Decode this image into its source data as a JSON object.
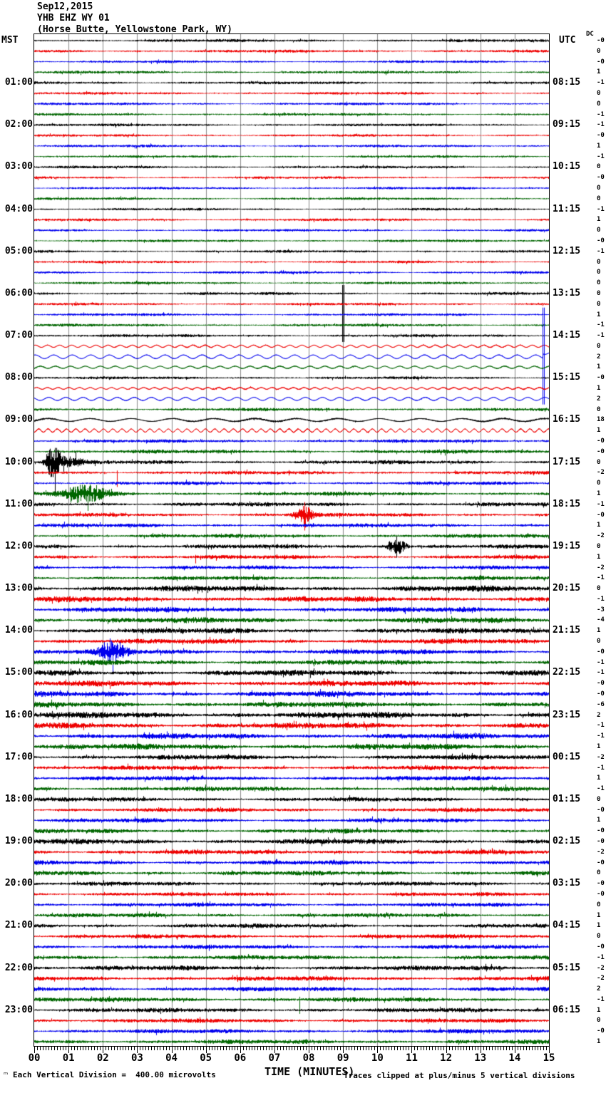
{
  "header": {
    "date": "Sep12,2015",
    "station": "YHB EHZ WY 01",
    "location": "(Horse Butte, Yellowstone Park, WY)"
  },
  "axes": {
    "left_timezone": "MST",
    "right_timezone": "UTC",
    "dc_label": "DC",
    "x_title": "TIME (MINUTES)"
  },
  "footer": {
    "scale_note": "Each Vertical Division =  400.00 microvolts",
    "clip_note": "Traces clipped at plus/minus 5 vertical divisions",
    "corner_glyph": "ₘ"
  },
  "chart_data": {
    "type": "line",
    "subtype": "helicorder-seismogram",
    "minutes_per_line": 15,
    "lines_per_hour": 4,
    "num_rows": 96,
    "row_color_cycle": [
      "#000000",
      "#ee0000",
      "#0000ee",
      "#006600"
    ],
    "grid_color": "#8a8a8a",
    "x_axis": {
      "min": 0,
      "max": 15,
      "major_tick_every": 1,
      "minor_ticks_per_major": 12,
      "tick_labels": [
        "00",
        "01",
        "02",
        "03",
        "04",
        "05",
        "06",
        "07",
        "08",
        "09",
        "10",
        "11",
        "12",
        "13",
        "14",
        "15"
      ]
    },
    "left_labels": [
      "01:00",
      "02:00",
      "03:00",
      "04:00",
      "05:00",
      "06:00",
      "07:00",
      "08:00",
      "09:00",
      "10:00",
      "11:00",
      "12:00",
      "13:00",
      "14:00",
      "15:00",
      "16:00",
      "17:00",
      "18:00",
      "19:00",
      "20:00",
      "21:00",
      "22:00",
      "23:00"
    ],
    "right_labels": [
      "08:15",
      "09:15",
      "10:15",
      "11:15",
      "12:15",
      "13:15",
      "14:15",
      "15:15",
      "16:15",
      "17:15",
      "18:15",
      "19:15",
      "20:15",
      "21:15",
      "22:15",
      "23:15",
      "00:15",
      "01:15",
      "02:15",
      "03:15",
      "04:15",
      "05:15",
      "06:15"
    ],
    "first_label_row": 5,
    "label_row_interval": 4,
    "dc_values": [
      "-0",
      "0",
      "-0",
      "1",
      "-1",
      "0",
      "0",
      "-1",
      "-1",
      "-0",
      "1",
      "-1",
      "0",
      "-0",
      "0",
      "0",
      "-1",
      "1",
      "0",
      "-0",
      "-1",
      "0",
      "0",
      "0",
      "0",
      "0",
      "1",
      "-1",
      "-1",
      "0",
      "2",
      "1",
      "-0",
      "1",
      "2",
      "0",
      "18",
      "1",
      "-0",
      "-0",
      "0",
      "-2",
      "0",
      "1",
      "-1",
      "-0",
      "1",
      "-2",
      "0",
      "1",
      "-2",
      "-1",
      "0",
      "-1",
      "-3",
      "-4",
      "1",
      "0",
      "-0",
      "-1",
      "-1",
      "-0",
      "-0",
      "-6",
      "2",
      "-1",
      "-1",
      "1",
      "-2",
      "-1",
      "1",
      "-1",
      "0",
      "-0",
      "1",
      "-0",
      "-0",
      "-2",
      "-0",
      "0",
      "-0",
      "-0",
      "0",
      "1",
      "1",
      "0",
      "-0",
      "-1",
      "-2",
      "-2",
      "2",
      "-1",
      "1",
      "0",
      "-0",
      "1"
    ],
    "row_amplitudes": [
      1.7,
      1.6,
      1.5,
      1.6,
      1.6,
      1.5,
      1.5,
      1.5,
      1.5,
      1.4,
      1.5,
      1.4,
      1.5,
      1.4,
      1.4,
      1.5,
      1.4,
      1.5,
      1.4,
      1.5,
      1.5,
      1.4,
      1.5,
      1.5,
      1.6,
      1.5,
      1.5,
      1.6,
      1.6,
      0.7,
      0.5,
      0.8,
      1.6,
      0.8,
      0.5,
      1.8,
      1.2,
      0.8,
      1.9,
      2.2,
      2.2,
      2.0,
      2.0,
      2.2,
      2.3,
      2.1,
      2.2,
      2.2,
      2.4,
      2.3,
      2.3,
      2.3,
      3.3,
      3.1,
      3.0,
      3.2,
      3.0,
      2.9,
      2.9,
      2.9,
      3.3,
      3.2,
      3.2,
      3.1,
      3.5,
      3.3,
      3.2,
      3.3,
      2.7,
      2.6,
      2.6,
      2.6,
      2.4,
      2.4,
      2.4,
      2.4,
      3.0,
      2.6,
      2.5,
      2.6,
      2.3,
      2.2,
      2.3,
      2.3,
      2.4,
      2.4,
      2.4,
      2.5,
      2.7,
      2.6,
      2.6,
      2.6,
      2.5,
      2.4,
      2.4,
      2.5
    ],
    "sine_rows": {
      "30": {
        "amp": 1.6,
        "period": 17,
        "noise": 0.7
      },
      "31": {
        "amp": 2.6,
        "period": 26,
        "noise": 0.5
      },
      "32": {
        "amp": 1.6,
        "period": 21,
        "noise": 0.8
      },
      "34": {
        "amp": 1.3,
        "period": 15,
        "noise": 0.8
      },
      "35": {
        "amp": 2.2,
        "period": 24,
        "noise": 0.5
      },
      "37": {
        "amp": 2.0,
        "period": 58,
        "noise": 1.2
      },
      "38": {
        "amp": 2.3,
        "period": 13,
        "noise": 0.8
      }
    },
    "events": [
      {
        "row": 25,
        "type": "clip_spike",
        "minute": 8.97,
        "up": 12,
        "down": 68
      },
      {
        "row": 31,
        "type": "clip_spike",
        "minute": 14.82,
        "up": 69,
        "down": 67,
        "step": -6
      },
      {
        "row": 41,
        "type": "burst",
        "minute": 0.55,
        "width": 0.3,
        "amp": 26,
        "clip": 21
      },
      {
        "row": 41,
        "type": "spike",
        "minute": 0.6,
        "up": 20,
        "down": 48
      },
      {
        "row": 41,
        "type": "burst",
        "minute": 1.05,
        "width": 0.55,
        "amp": 6
      },
      {
        "row": 42,
        "type": "spike",
        "minute": 2.42,
        "up": 3,
        "down": 20
      },
      {
        "row": 44,
        "type": "burst",
        "minute": 1.5,
        "width": 0.85,
        "amp": 13
      },
      {
        "row": 44,
        "type": "spike",
        "minute": 1.55,
        "up": 8,
        "down": 24
      },
      {
        "row": 46,
        "type": "burst",
        "minute": 7.85,
        "width": 0.4,
        "amp": 12
      },
      {
        "row": 46,
        "type": "spike",
        "minute": 7.88,
        "up": 18,
        "down": 22
      },
      {
        "row": 49,
        "type": "burst",
        "minute": 10.55,
        "width": 0.4,
        "amp": 11
      },
      {
        "row": 49,
        "type": "spike",
        "minute": 10.56,
        "up": 14,
        "down": 16
      },
      {
        "row": 50,
        "type": "spike",
        "minute": 4.7,
        "up": 3,
        "down": 9
      },
      {
        "row": 59,
        "type": "burst",
        "minute": 2.3,
        "width": 0.55,
        "amp": 13
      },
      {
        "row": 59,
        "type": "spike",
        "minute": 2.28,
        "up": 10,
        "down": 30
      },
      {
        "row": 92,
        "type": "spike",
        "minute": 7.72,
        "up": 4,
        "down": 20
      }
    ]
  }
}
